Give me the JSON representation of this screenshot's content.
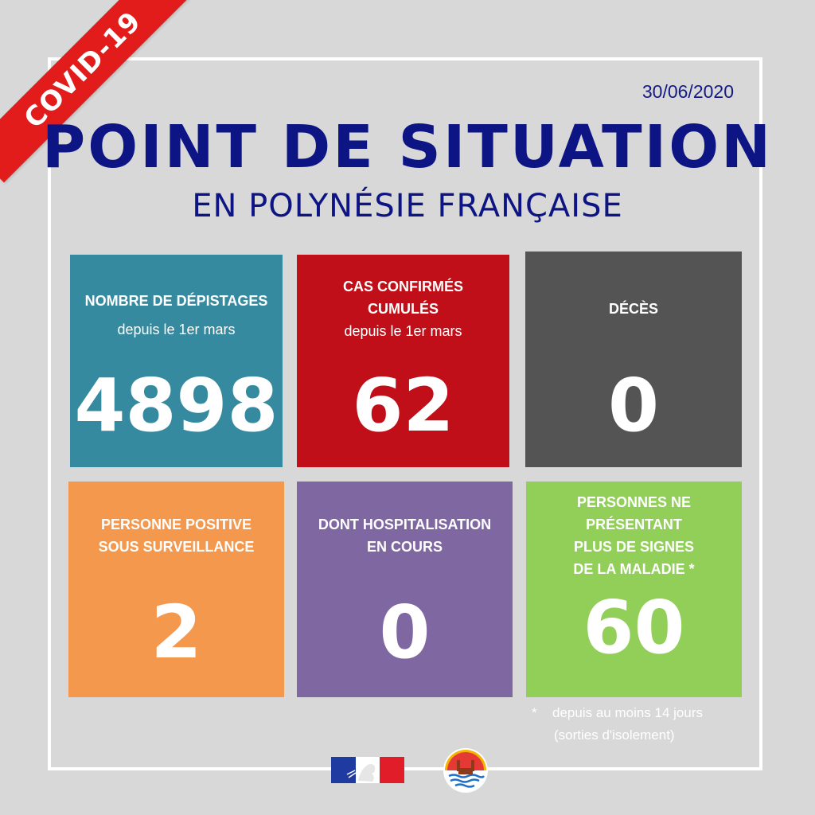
{
  "ribbon": {
    "text": "COVID-19",
    "color": "#e21b1b"
  },
  "header": {
    "date": "30/06/2020",
    "title": "POINT DE SITUATION",
    "subtitle": "EN POLYNÉSIE FRANÇAISE",
    "color": "#0d1484"
  },
  "cards": [
    {
      "label": "NOMBRE DE DÉPISTAGES",
      "sub": "depuis le 1er mars",
      "value": "4898",
      "color": "#368a9f"
    },
    {
      "label": "CAS CONFIRMÉS\nCUMULÉS",
      "sub": "depuis le 1er mars",
      "value": "62",
      "color": "#c00f18"
    },
    {
      "label": "DÉCÈS",
      "sub": "",
      "value": "0",
      "color": "#545454"
    },
    {
      "label": "PERSONNE POSITIVE\nSOUS SURVEILLANCE",
      "sub": "",
      "value": "2",
      "color": "#f3984c"
    },
    {
      "label": "DONT HOSPITALISATION\nEN COURS",
      "sub": "",
      "value": "0",
      "color": "#7f67a2"
    },
    {
      "label": "PERSONNES NE\nPRÉSENTANT\nPLUS DE SIGNES\nDE LA MALADIE *",
      "sub": "",
      "value": "60",
      "color": "#92cf59"
    }
  ],
  "footnote": {
    "star": "*",
    "line1": "depuis au moins 14 jours",
    "line2": "(sorties d'isolement)"
  },
  "logos": {
    "france": "republique-francaise-logo",
    "polynesia": "polynesie-francaise-seal"
  }
}
